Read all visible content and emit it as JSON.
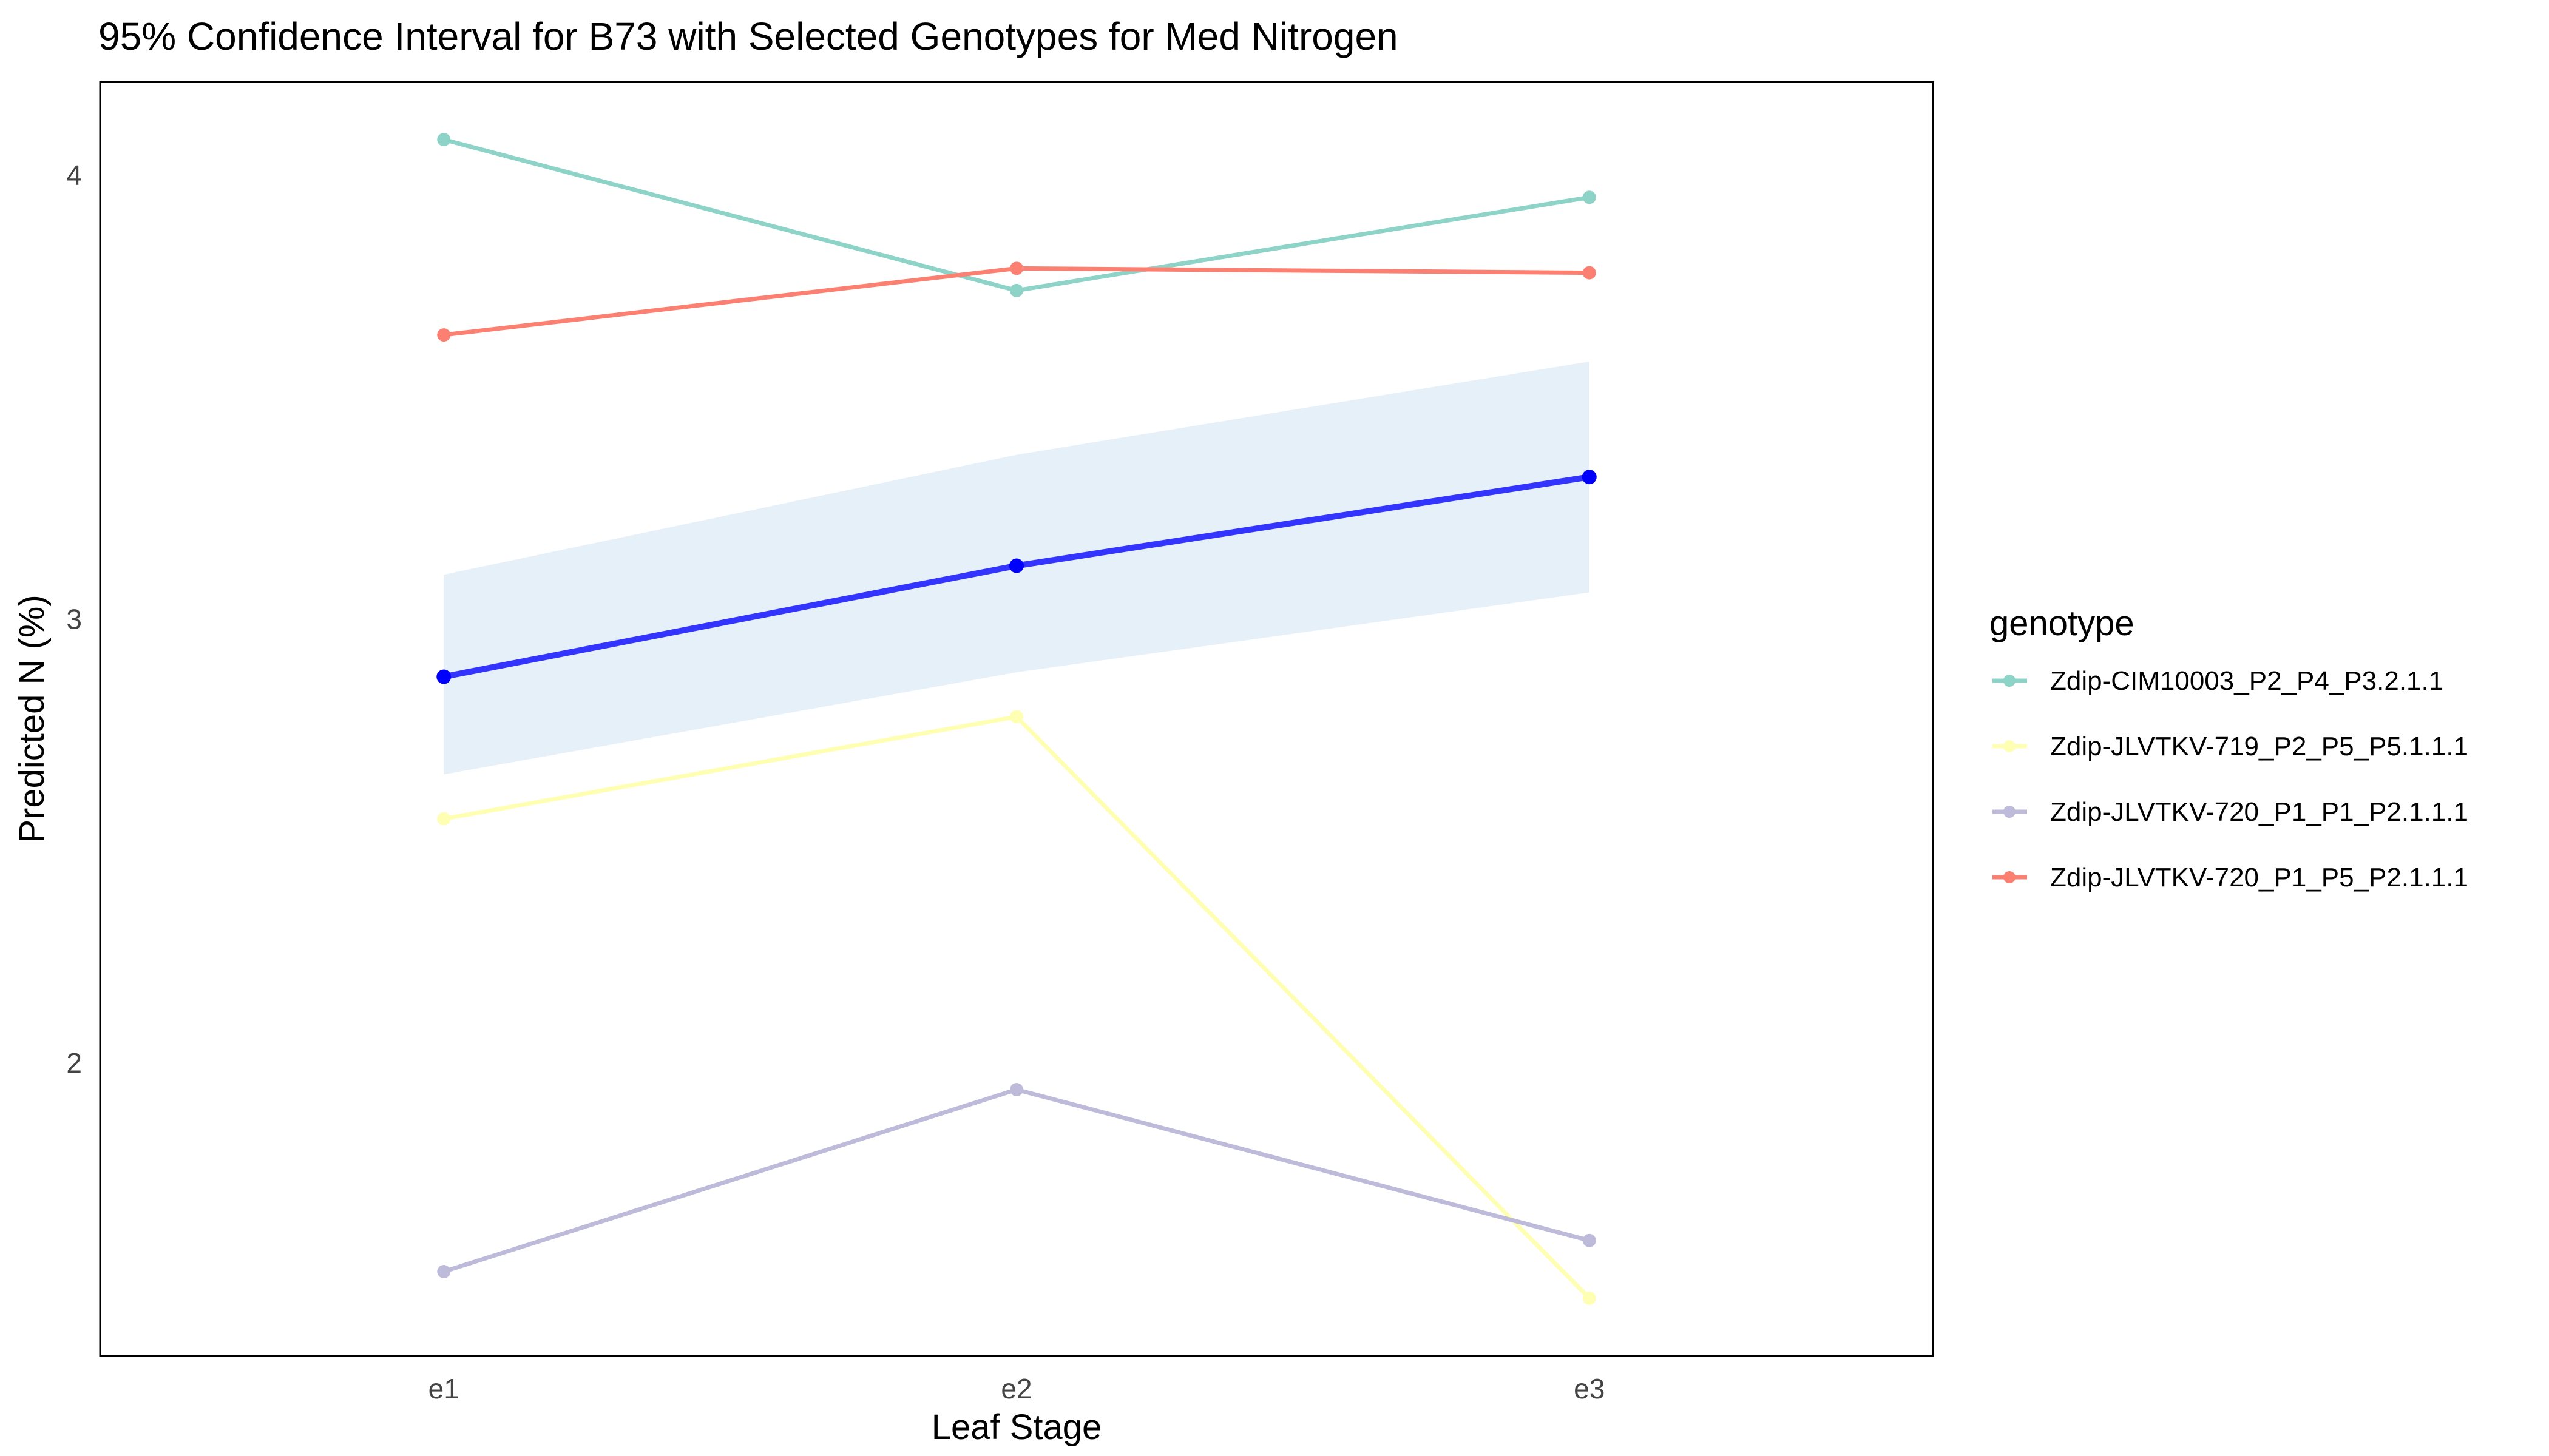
{
  "chart_data": {
    "type": "line",
    "title": "95% Confidence Interval for B73 with Selected Genotypes for Med Nitrogen",
    "xlabel": "Leaf Stage",
    "ylabel": "Predicted N (%)",
    "categories": [
      "e1",
      "e2",
      "e3"
    ],
    "ylim": [
      1.34,
      4.21
    ],
    "yticks": [
      2,
      3,
      4
    ],
    "grid": false,
    "legend": {
      "title": "genotype",
      "position": "right"
    },
    "reference": {
      "values": [
        2.87,
        3.12,
        3.32
      ],
      "color": "#0000FF",
      "ci_lower": [
        2.65,
        2.88,
        3.06
      ],
      "ci_upper": [
        3.1,
        3.37,
        3.58
      ],
      "ci_color": "#E6F0F9"
    },
    "series": [
      {
        "name": "Zdip-CIM10003_P2_P4_P3.2.1.1",
        "color": "#8DD3C7",
        "values": [
          4.08,
          3.74,
          3.95
        ]
      },
      {
        "name": "Zdip-JLVTKV-719_P2_P5_P5.1.1.1",
        "color": "#FFFFB3",
        "values": [
          2.55,
          2.78,
          1.47
        ]
      },
      {
        "name": "Zdip-JLVTKV-720_P1_P1_P2.1.1.1",
        "color": "#BEBADA",
        "values": [
          1.53,
          1.94,
          1.6
        ]
      },
      {
        "name": "Zdip-JLVTKV-720_P1_P5_P2.1.1.1",
        "color": "#FB8072",
        "values": [
          3.64,
          3.79,
          3.78
        ]
      }
    ]
  }
}
